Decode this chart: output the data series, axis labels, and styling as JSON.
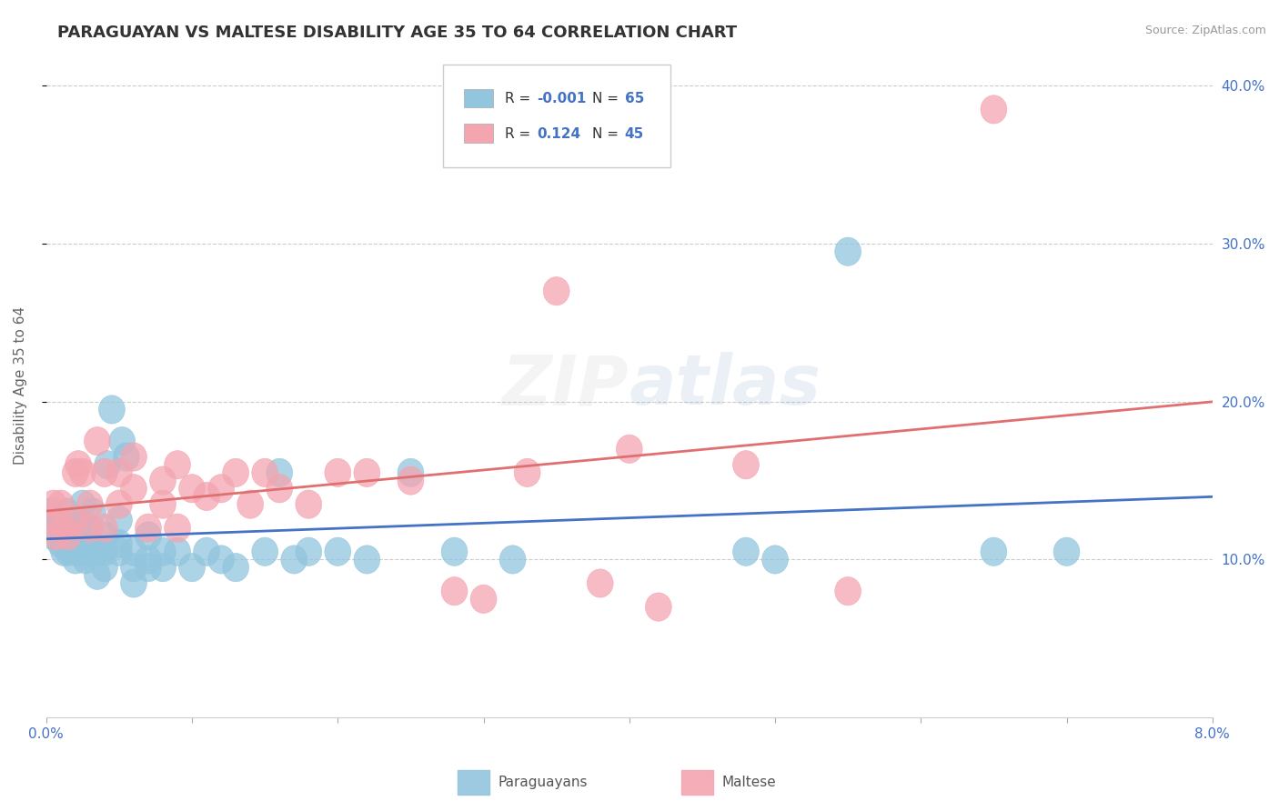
{
  "title": "PARAGUAYAN VS MALTESE DISABILITY AGE 35 TO 64 CORRELATION CHART",
  "source_text": "Source: ZipAtlas.com",
  "ylabel": "Disability Age 35 to 64",
  "xlim": [
    0.0,
    0.08
  ],
  "ylim": [
    0.0,
    0.42
  ],
  "right_yticks": [
    0.1,
    0.2,
    0.3,
    0.4
  ],
  "right_ytick_labels": [
    "10.0%",
    "20.0%",
    "30.0%",
    "40.0%"
  ],
  "xticks": [
    0.0,
    0.01,
    0.02,
    0.03,
    0.04,
    0.05,
    0.06,
    0.07,
    0.08
  ],
  "xtick_labels": [
    "0.0%",
    "",
    "",
    "",
    "",
    "",
    "",
    "",
    "8.0%"
  ],
  "legend_line1": "R = -0.001   N = 65",
  "legend_line2": "R =  0.124   N = 45",
  "legend_r1_val": "-0.001",
  "legend_n1_val": "65",
  "legend_r2_val": "0.124",
  "legend_n2_val": "45",
  "paraguayan_color": "#92c5de",
  "maltese_color": "#f4a5b0",
  "trendline_paraguayan_color": "#4472c4",
  "trendline_maltese_color": "#e07070",
  "background_color": "#ffffff",
  "grid_color": "#cccccc",
  "paraguayan_x": [
    0.0003,
    0.0005,
    0.0006,
    0.0008,
    0.001,
    0.001,
    0.0012,
    0.0013,
    0.0014,
    0.0015,
    0.0016,
    0.0017,
    0.0018,
    0.002,
    0.002,
    0.002,
    0.0022,
    0.0023,
    0.0025,
    0.0025,
    0.0027,
    0.003,
    0.003,
    0.003,
    0.0032,
    0.0033,
    0.0035,
    0.0035,
    0.004,
    0.004,
    0.004,
    0.0042,
    0.0045,
    0.005,
    0.005,
    0.005,
    0.0052,
    0.0055,
    0.006,
    0.006,
    0.006,
    0.007,
    0.007,
    0.007,
    0.008,
    0.008,
    0.009,
    0.01,
    0.011,
    0.012,
    0.013,
    0.015,
    0.016,
    0.017,
    0.018,
    0.02,
    0.022,
    0.025,
    0.028,
    0.032,
    0.048,
    0.05,
    0.055,
    0.065,
    0.07
  ],
  "paraguayan_y": [
    0.13,
    0.115,
    0.12,
    0.125,
    0.11,
    0.12,
    0.105,
    0.115,
    0.13,
    0.105,
    0.11,
    0.12,
    0.115,
    0.1,
    0.11,
    0.12,
    0.125,
    0.105,
    0.135,
    0.115,
    0.1,
    0.105,
    0.11,
    0.12,
    0.13,
    0.105,
    0.09,
    0.105,
    0.095,
    0.105,
    0.115,
    0.16,
    0.195,
    0.105,
    0.11,
    0.125,
    0.175,
    0.165,
    0.085,
    0.095,
    0.105,
    0.095,
    0.1,
    0.115,
    0.095,
    0.105,
    0.105,
    0.095,
    0.105,
    0.1,
    0.095,
    0.105,
    0.155,
    0.1,
    0.105,
    0.105,
    0.1,
    0.155,
    0.105,
    0.1,
    0.105,
    0.1,
    0.295,
    0.105,
    0.105
  ],
  "maltese_x": [
    0.0003,
    0.0005,
    0.0007,
    0.001,
    0.0012,
    0.0015,
    0.002,
    0.002,
    0.0022,
    0.0025,
    0.003,
    0.003,
    0.0035,
    0.004,
    0.004,
    0.005,
    0.005,
    0.006,
    0.006,
    0.007,
    0.008,
    0.008,
    0.009,
    0.009,
    0.01,
    0.011,
    0.012,
    0.013,
    0.014,
    0.015,
    0.016,
    0.018,
    0.02,
    0.022,
    0.025,
    0.028,
    0.03,
    0.033,
    0.035,
    0.038,
    0.04,
    0.042,
    0.048,
    0.055,
    0.065
  ],
  "maltese_y": [
    0.125,
    0.135,
    0.115,
    0.135,
    0.12,
    0.115,
    0.125,
    0.155,
    0.16,
    0.155,
    0.12,
    0.135,
    0.175,
    0.12,
    0.155,
    0.135,
    0.155,
    0.145,
    0.165,
    0.12,
    0.135,
    0.15,
    0.16,
    0.12,
    0.145,
    0.14,
    0.145,
    0.155,
    0.135,
    0.155,
    0.145,
    0.135,
    0.155,
    0.155,
    0.15,
    0.08,
    0.075,
    0.155,
    0.27,
    0.085,
    0.17,
    0.07,
    0.16,
    0.08,
    0.385
  ],
  "title_fontsize": 13,
  "label_fontsize": 11,
  "tick_fontsize": 11,
  "legend_fontsize": 12,
  "watermark_fontsize": 55,
  "watermark_alpha": 0.13
}
